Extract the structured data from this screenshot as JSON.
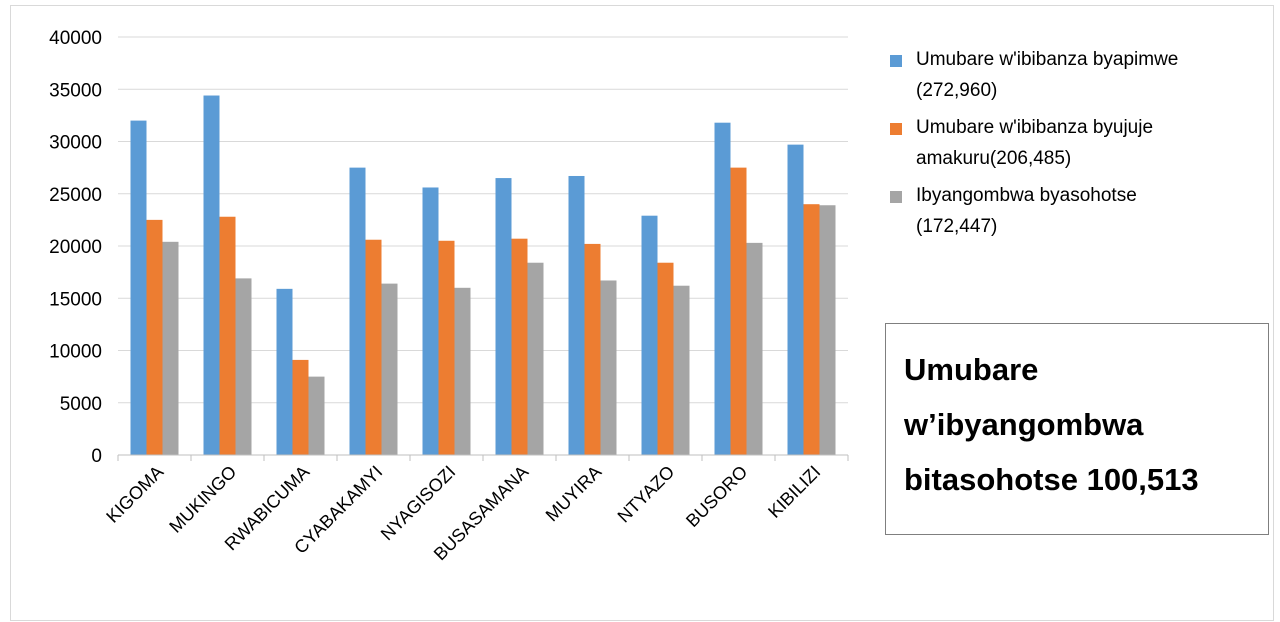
{
  "chart_data": {
    "type": "bar",
    "categories": [
      "KIGOMA",
      "MUKINGO",
      "RWABICUMA",
      "CYABAKAMYI",
      "NYAGISOZI",
      "BUSASAMANA",
      "MUYIRA",
      "NTYAZO",
      "BUSORO",
      "KIBILIZI"
    ],
    "series": [
      {
        "name": "Umubare w'ibibanza byapimwe\n(272,960)",
        "color": "#5b9bd5",
        "values": [
          32000,
          34400,
          15900,
          27500,
          25600,
          26500,
          26700,
          22900,
          31800,
          29700
        ]
      },
      {
        "name": "Umubare w'ibibanza byujuje\namakuru(206,485)",
        "color": "#ed7d31",
        "values": [
          22500,
          22800,
          9100,
          20600,
          20500,
          20700,
          20200,
          18400,
          27500,
          24000
        ]
      },
      {
        "name": "Ibyangombwa byasohotse\n(172,447)",
        "color": "#a5a5a5",
        "values": [
          20400,
          16900,
          7500,
          16400,
          16000,
          18400,
          16700,
          16200,
          20300,
          23900
        ]
      }
    ],
    "yticks": [
      "0",
      "5000",
      "10000",
      "15000",
      "20000",
      "25000",
      "30000",
      "35000",
      "40000"
    ],
    "ylim": [
      0,
      40000
    ],
    "grid": true,
    "legend": "right"
  },
  "summary_box": {
    "text": "Umubare\nw’ibyangombwa\nbitasohotse 100,513"
  }
}
